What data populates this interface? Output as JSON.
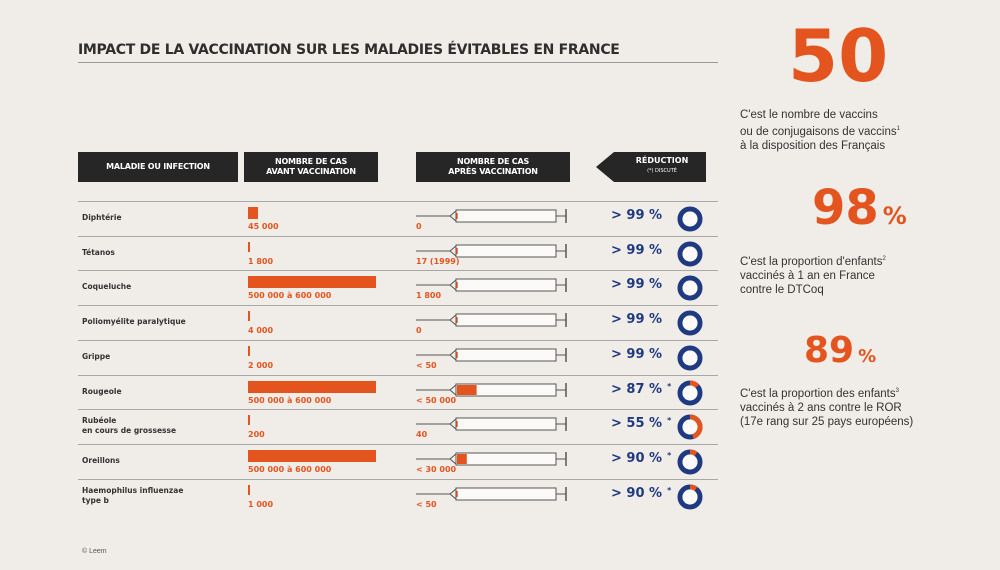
{
  "title": "IMPACT DE LA VACCINATION SUR LES MALADIES ÉVITABLES EN FRANCE",
  "headers": {
    "disease": "MALADIE OU INFECTION",
    "before_line1": "NOMBRE DE CAS",
    "before_line2": "AVANT VACCINATION",
    "after_line1": "NOMBRE DE CAS",
    "after_line2": "APRÈS VACCINATION",
    "reduction": "RÉDUCTION",
    "reduction_note": "(*) DISCUTÉ"
  },
  "colors": {
    "accent": "#e4541f",
    "navy": "#1f3a80",
    "dark": "#262626",
    "background": "#f0ede8"
  },
  "chart_data": {
    "type": "bar",
    "categories": [
      "Diphtérie",
      "Tétanos",
      "Coqueluche",
      "Poliomyélite paralytique",
      "Grippe",
      "Rougeole",
      "Rubéole en cours de grossesse",
      "Oreillons",
      "Haemophilus influenzae type b"
    ],
    "rows": [
      {
        "label_lines": [
          "Diphtérie"
        ],
        "before": "45 000",
        "before_level": 0.075,
        "after": "0",
        "after_level": 0,
        "reduction": "> 99  %",
        "reduction_value": 99,
        "disputed": false
      },
      {
        "label_lines": [
          "Tétanos"
        ],
        "before": "1 800",
        "before_level": 0.01,
        "after": "17 (1999)",
        "after_level": 0,
        "reduction": "> 99 %",
        "reduction_value": 99,
        "disputed": false
      },
      {
        "label_lines": [
          "Coqueluche"
        ],
        "before": "500 000 à 600 000",
        "before_level": 1,
        "after": "1 800",
        "after_level": 0,
        "reduction": "> 99 %",
        "reduction_value": 99,
        "disputed": false
      },
      {
        "label_lines": [
          "Poliomyélite paralytique"
        ],
        "before": "4 000",
        "before_level": 0.01,
        "after": "0",
        "after_level": 0,
        "reduction": "> 99 %",
        "reduction_value": 99,
        "disputed": false
      },
      {
        "label_lines": [
          "Grippe"
        ],
        "before": "2 000",
        "before_level": 0.01,
        "after": "< 50",
        "after_level": 0,
        "reduction": "> 99 %",
        "reduction_value": 99,
        "disputed": false
      },
      {
        "label_lines": [
          "Rougeole"
        ],
        "before": "500 000 à 600 000",
        "before_level": 1,
        "after": "< 50 000",
        "after_level": 0.2,
        "reduction": "> 87 %",
        "reduction_value": 87,
        "disputed": true
      },
      {
        "label_lines": [
          "Rubéole",
          "en cours de grossesse"
        ],
        "before": "200",
        "before_level": 0.005,
        "after": "40",
        "after_level": 0,
        "reduction": "> 55 %",
        "reduction_value": 55,
        "disputed": true
      },
      {
        "label_lines": [
          "Oreillons"
        ],
        "before": "500 000 à 600 000",
        "before_level": 1,
        "after": "< 30 000",
        "after_level": 0.1,
        "reduction": "> 90 %",
        "reduction_value": 90,
        "disputed": true
      },
      {
        "label_lines": [
          "Haemophilus influenzae",
          "type b"
        ],
        "before": "1 000",
        "before_level": 0.005,
        "after": "< 50",
        "after_level": 0,
        "reduction": "> 90 %",
        "reduction_value": 90,
        "disputed": true
      }
    ]
  },
  "stats": [
    {
      "value": "50",
      "pct": "",
      "text_lines": [
        "C'est le nombre de vaccins",
        "ou de conjugaisons de vaccins",
        "à la disposition des Français"
      ],
      "sups": [
        "",
        "1",
        ""
      ]
    },
    {
      "value": "98",
      "pct": "%",
      "text_lines": [
        "C'est la proportion d'enfants",
        "vaccinés à 1 an en France",
        "contre le DTCoq"
      ],
      "sups": [
        "2",
        "",
        ""
      ]
    },
    {
      "value": "89",
      "pct": "%",
      "text_lines": [
        "C'est la proportion des enfants",
        "vaccinés à 2 ans contre le ROR",
        "(17e rang sur 25 pays européens)"
      ],
      "sups": [
        "3",
        "",
        ""
      ]
    }
  ],
  "credit": "© Leem"
}
